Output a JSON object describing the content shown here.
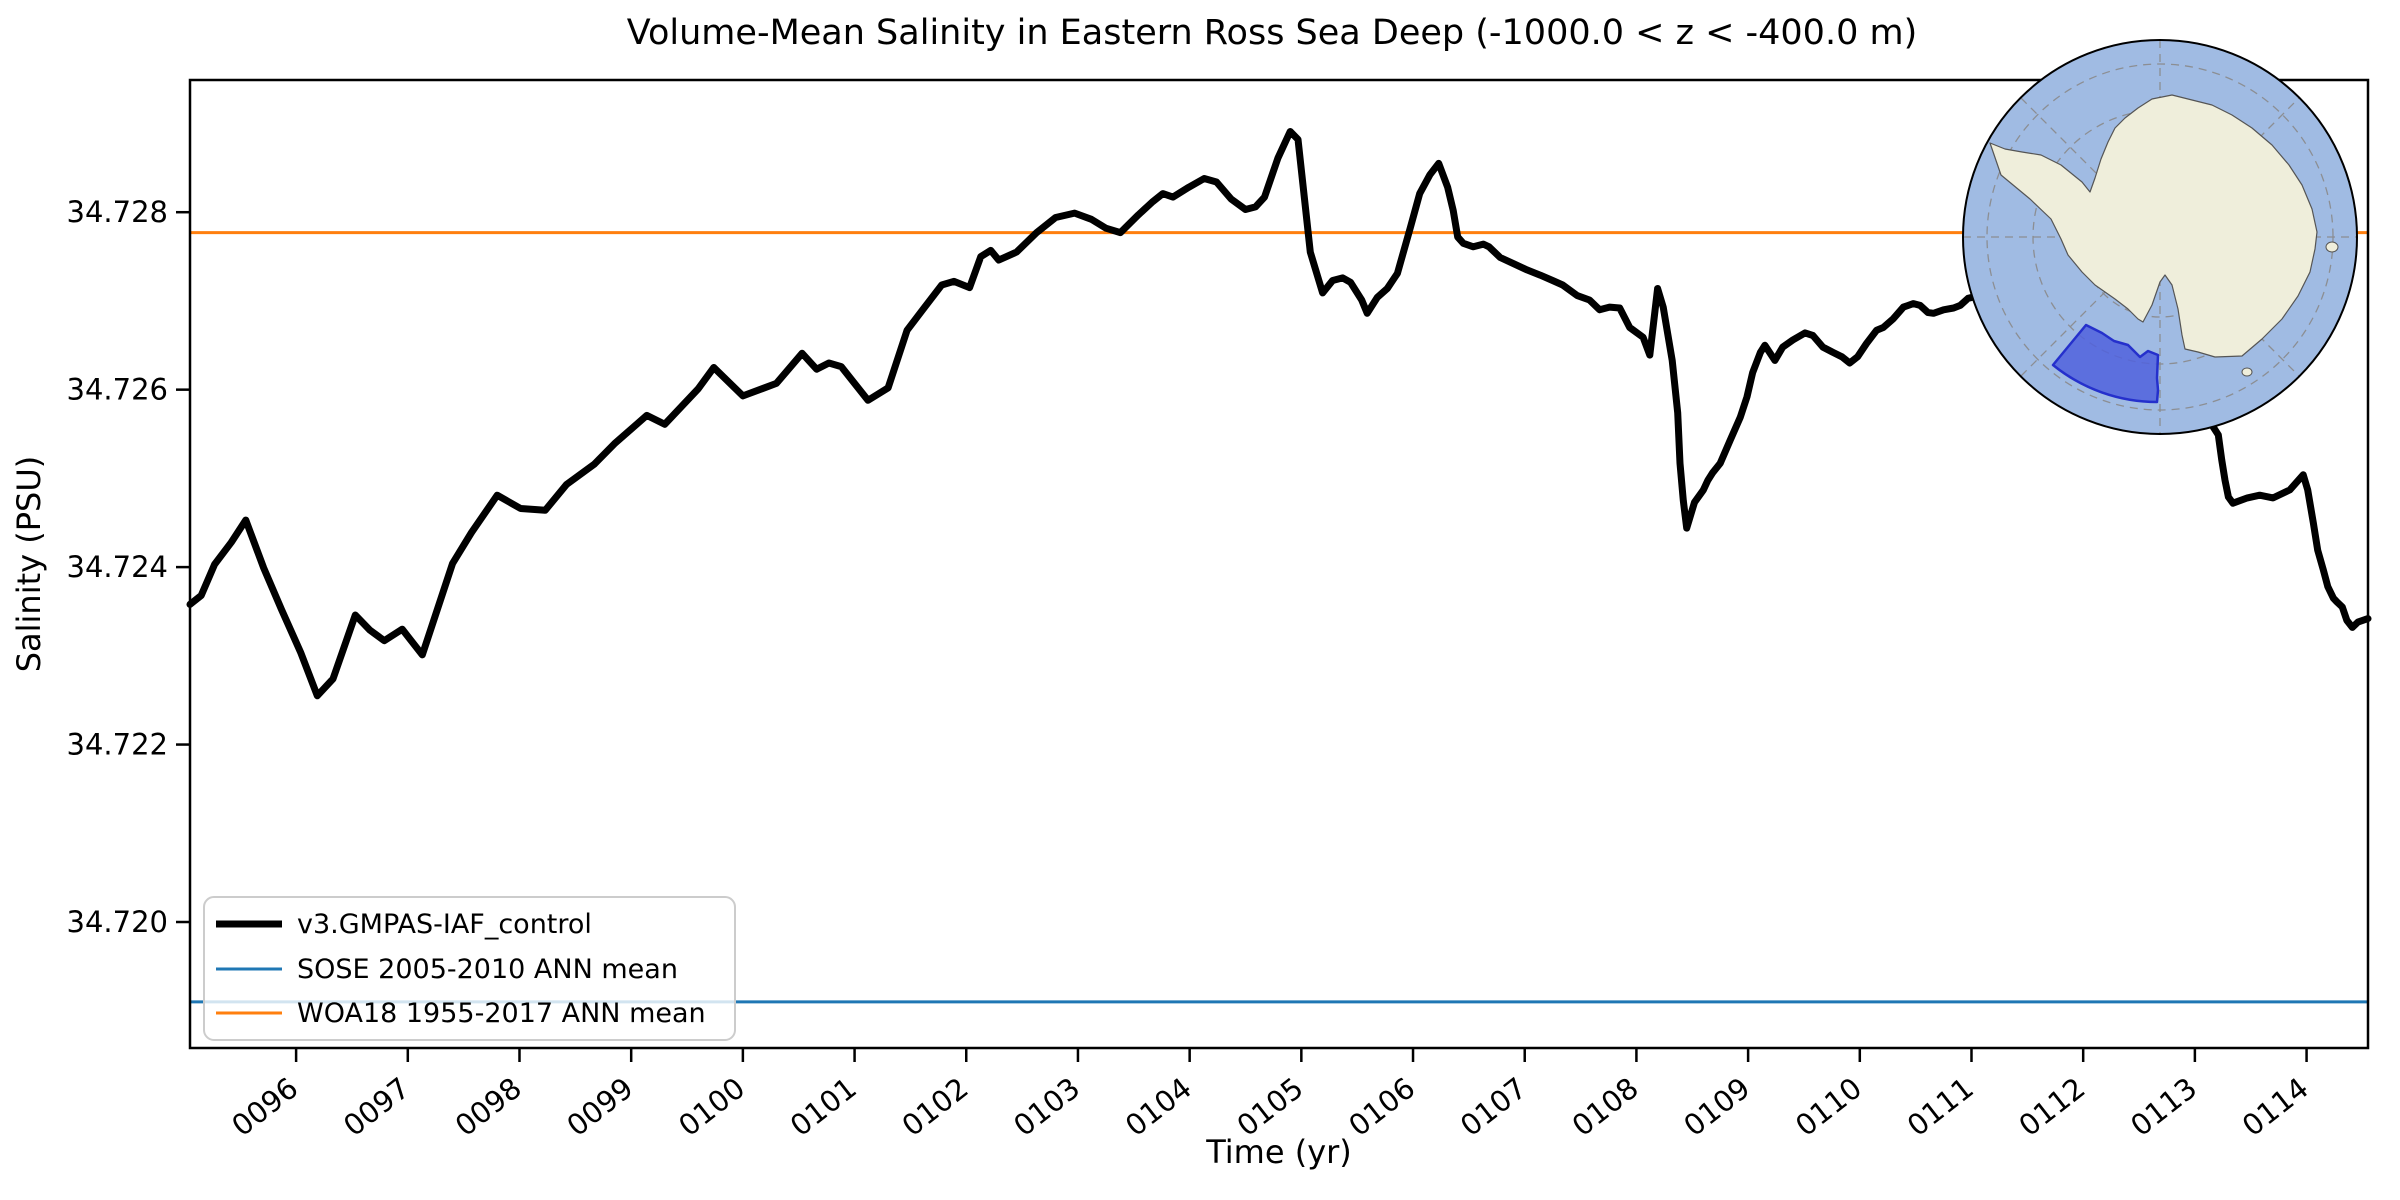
{
  "title": "Volume-Mean Salinity in Eastern Ross Sea Deep (-1000.0 < z < -400.0 m)",
  "xlabel": "Time (yr)",
  "ylabel": "Salinity (PSU)",
  "legend": {
    "entries": [
      {
        "label": "v3.GMPAS-IAF_control",
        "color": "#000000",
        "linewidth": 7
      },
      {
        "label": "SOSE 2005-2010 ANN mean",
        "color": "#1f77b4",
        "linewidth": 3
      },
      {
        "label": "WOA18 1955-2017 ANN mean",
        "color": "#ff7f0e",
        "linewidth": 3
      }
    ]
  },
  "inset_map": {
    "description": "South polar stereographic map of Antarctica with Eastern Ross Sea region highlighted",
    "ocean_color": "#a0bbe3",
    "land_color": "#efeedb",
    "highlight_fill": "#5061dd",
    "highlight_edge": "#2530cc"
  },
  "chart_data": {
    "type": "line",
    "title": "Volume-Mean Salinity in Eastern Ross Sea Deep (-1000.0 < z < -400.0 m)",
    "xlabel": "Time (yr)",
    "ylabel": "Salinity (PSU)",
    "xlim": [
      95.05,
      114.55
    ],
    "ylim": [
      34.71858,
      34.72949
    ],
    "grid": false,
    "legend_position": "lower left",
    "x_ticks": {
      "values": [
        96,
        97,
        98,
        99,
        100,
        101,
        102,
        103,
        104,
        105,
        106,
        107,
        108,
        109,
        110,
        111,
        112,
        113,
        114
      ],
      "labels": [
        "0096",
        "0097",
        "0098",
        "0099",
        "0100",
        "0101",
        "0102",
        "0103",
        "0104",
        "0105",
        "0106",
        "0107",
        "0108",
        "0109",
        "0110",
        "0111",
        "0112",
        "0113",
        "0114"
      ],
      "rotation": -38
    },
    "y_ticks": {
      "values": [
        34.72,
        34.722,
        34.724,
        34.726,
        34.728
      ],
      "labels": [
        "34.720",
        "34.722",
        "34.724",
        "34.726",
        "34.728"
      ]
    },
    "series": [
      {
        "name": "v3.GMPAS-IAF_control",
        "kind": "line",
        "color": "#000000",
        "linewidth": 7,
        "points": [
          [
            95.05,
            34.72358
          ],
          [
            95.15,
            34.72368
          ],
          [
            95.27,
            34.72403
          ],
          [
            95.42,
            34.72428
          ],
          [
            95.55,
            34.72453
          ],
          [
            95.71,
            34.72399
          ],
          [
            95.87,
            34.72352
          ],
          [
            96.04,
            34.72304
          ],
          [
            96.19,
            34.72255
          ],
          [
            96.33,
            34.72274
          ],
          [
            96.53,
            34.72346
          ],
          [
            96.66,
            34.72329
          ],
          [
            96.79,
            34.72317
          ],
          [
            96.95,
            34.7233
          ],
          [
            97.13,
            34.72301
          ],
          [
            97.4,
            34.72404
          ],
          [
            97.57,
            34.72439
          ],
          [
            97.8,
            34.72481
          ],
          [
            98.01,
            34.72466
          ],
          [
            98.23,
            34.72464
          ],
          [
            98.42,
            34.72493
          ],
          [
            98.67,
            34.72516
          ],
          [
            98.85,
            34.72539
          ],
          [
            99.14,
            34.72571
          ],
          [
            99.3,
            34.72561
          ],
          [
            99.6,
            34.72601
          ],
          [
            99.74,
            34.72625
          ],
          [
            100.0,
            34.72593
          ],
          [
            100.17,
            34.72601
          ],
          [
            100.3,
            34.72607
          ],
          [
            100.53,
            34.72641
          ],
          [
            100.66,
            34.72623
          ],
          [
            100.77,
            34.7263
          ],
          [
            100.88,
            34.72626
          ],
          [
            101.12,
            34.72588
          ],
          [
            101.3,
            34.72602
          ],
          [
            101.47,
            34.72667
          ],
          [
            101.61,
            34.7269
          ],
          [
            101.78,
            34.72718
          ],
          [
            101.89,
            34.72722
          ],
          [
            102.03,
            34.72715
          ],
          [
            102.13,
            34.7275
          ],
          [
            102.22,
            34.72757
          ],
          [
            102.29,
            34.72746
          ],
          [
            102.45,
            34.72755
          ],
          [
            102.63,
            34.72777
          ],
          [
            102.8,
            34.72794
          ],
          [
            102.97,
            34.72799
          ],
          [
            103.12,
            34.72792
          ],
          [
            103.25,
            34.72782
          ],
          [
            103.38,
            34.72777
          ],
          [
            103.54,
            34.72797
          ],
          [
            103.67,
            34.72812
          ],
          [
            103.76,
            34.72821
          ],
          [
            103.85,
            34.72817
          ],
          [
            103.99,
            34.72828
          ],
          [
            104.13,
            34.72838
          ],
          [
            104.24,
            34.72834
          ],
          [
            104.37,
            34.72815
          ],
          [
            104.5,
            34.72803
          ],
          [
            104.59,
            34.72806
          ],
          [
            104.67,
            34.72817
          ],
          [
            104.79,
            34.72861
          ],
          [
            104.9,
            34.72891
          ],
          [
            104.97,
            34.72882
          ],
          [
            105.08,
            34.72755
          ],
          [
            105.19,
            34.72709
          ],
          [
            105.28,
            34.72723
          ],
          [
            105.37,
            34.72726
          ],
          [
            105.44,
            34.72721
          ],
          [
            105.54,
            34.72701
          ],
          [
            105.59,
            34.72686
          ],
          [
            105.68,
            34.72704
          ],
          [
            105.77,
            34.72714
          ],
          [
            105.86,
            34.72731
          ],
          [
            105.97,
            34.7278
          ],
          [
            106.06,
            34.72821
          ],
          [
            106.15,
            34.72842
          ],
          [
            106.23,
            34.72855
          ],
          [
            106.31,
            34.72828
          ],
          [
            106.36,
            34.72802
          ],
          [
            106.4,
            34.72772
          ],
          [
            106.45,
            34.72765
          ],
          [
            106.54,
            34.72761
          ],
          [
            106.63,
            34.72764
          ],
          [
            106.68,
            34.72761
          ],
          [
            106.78,
            34.72749
          ],
          [
            106.9,
            34.72742
          ],
          [
            107.02,
            34.72735
          ],
          [
            107.14,
            34.72729
          ],
          [
            107.25,
            34.72723
          ],
          [
            107.34,
            34.72718
          ],
          [
            107.47,
            34.72706
          ],
          [
            107.58,
            34.72701
          ],
          [
            107.67,
            34.7269
          ],
          [
            107.76,
            34.72693
          ],
          [
            107.85,
            34.72692
          ],
          [
            107.94,
            34.7267
          ],
          [
            108.06,
            34.72659
          ],
          [
            108.12,
            34.72639
          ],
          [
            108.19,
            34.72714
          ],
          [
            108.24,
            34.72693
          ],
          [
            108.32,
            34.72633
          ],
          [
            108.37,
            34.72574
          ],
          [
            108.39,
            34.72517
          ],
          [
            108.42,
            34.72475
          ],
          [
            108.45,
            34.72444
          ],
          [
            108.52,
            34.72473
          ],
          [
            108.6,
            34.72487
          ],
          [
            108.64,
            34.72498
          ],
          [
            108.68,
            34.72506
          ],
          [
            108.75,
            34.72517
          ],
          [
            108.84,
            34.72543
          ],
          [
            108.93,
            34.72569
          ],
          [
            108.99,
            34.72592
          ],
          [
            109.04,
            34.72619
          ],
          [
            109.11,
            34.72642
          ],
          [
            109.15,
            34.7265
          ],
          [
            109.24,
            34.72633
          ],
          [
            109.31,
            34.72648
          ],
          [
            109.4,
            34.72656
          ],
          [
            109.51,
            34.72664
          ],
          [
            109.58,
            34.72661
          ],
          [
            109.67,
            34.72648
          ],
          [
            109.76,
            34.72642
          ],
          [
            109.84,
            34.72637
          ],
          [
            109.91,
            34.7263
          ],
          [
            109.98,
            34.72637
          ],
          [
            110.06,
            34.72652
          ],
          [
            110.15,
            34.72667
          ],
          [
            110.21,
            34.7267
          ],
          [
            110.3,
            34.7268
          ],
          [
            110.39,
            34.72693
          ],
          [
            110.48,
            34.72697
          ],
          [
            110.54,
            34.72695
          ],
          [
            110.61,
            34.72687
          ],
          [
            110.66,
            34.72686
          ],
          [
            110.75,
            34.7269
          ],
          [
            110.84,
            34.72692
          ],
          [
            110.9,
            34.72695
          ],
          [
            110.97,
            34.72703
          ],
          [
            111.2,
            34.7271
          ],
          [
            111.5,
            34.727
          ],
          [
            111.8,
            34.7271
          ],
          [
            112.1,
            34.72718
          ],
          [
            112.4,
            34.7271
          ],
          [
            112.7,
            34.72688
          ],
          [
            112.9,
            34.7264
          ],
          [
            113.05,
            34.7258
          ],
          [
            113.21,
            34.72549
          ],
          [
            113.24,
            34.72521
          ],
          [
            113.27,
            34.72498
          ],
          [
            113.3,
            34.72479
          ],
          [
            113.34,
            34.72472
          ],
          [
            113.47,
            34.72478
          ],
          [
            113.58,
            34.72481
          ],
          [
            113.7,
            34.72478
          ],
          [
            113.85,
            34.72487
          ],
          [
            113.97,
            34.72504
          ],
          [
            114.01,
            34.72487
          ],
          [
            114.06,
            34.7245
          ],
          [
            114.1,
            34.72419
          ],
          [
            114.15,
            34.72397
          ],
          [
            114.19,
            34.72378
          ],
          [
            114.24,
            34.72365
          ],
          [
            114.27,
            34.72361
          ],
          [
            114.32,
            34.72355
          ],
          [
            114.36,
            34.7234
          ],
          [
            114.41,
            34.72332
          ],
          [
            114.46,
            34.72338
          ],
          [
            114.55,
            34.72342
          ]
        ]
      },
      {
        "name": "SOSE 2005-2010 ANN mean",
        "kind": "hline",
        "color": "#1f77b4",
        "linewidth": 3,
        "value": 34.7191
      },
      {
        "name": "WOA18 1955-2017 ANN mean",
        "kind": "hline",
        "color": "#ff7f0e",
        "linewidth": 3,
        "value": 34.72777
      }
    ]
  }
}
